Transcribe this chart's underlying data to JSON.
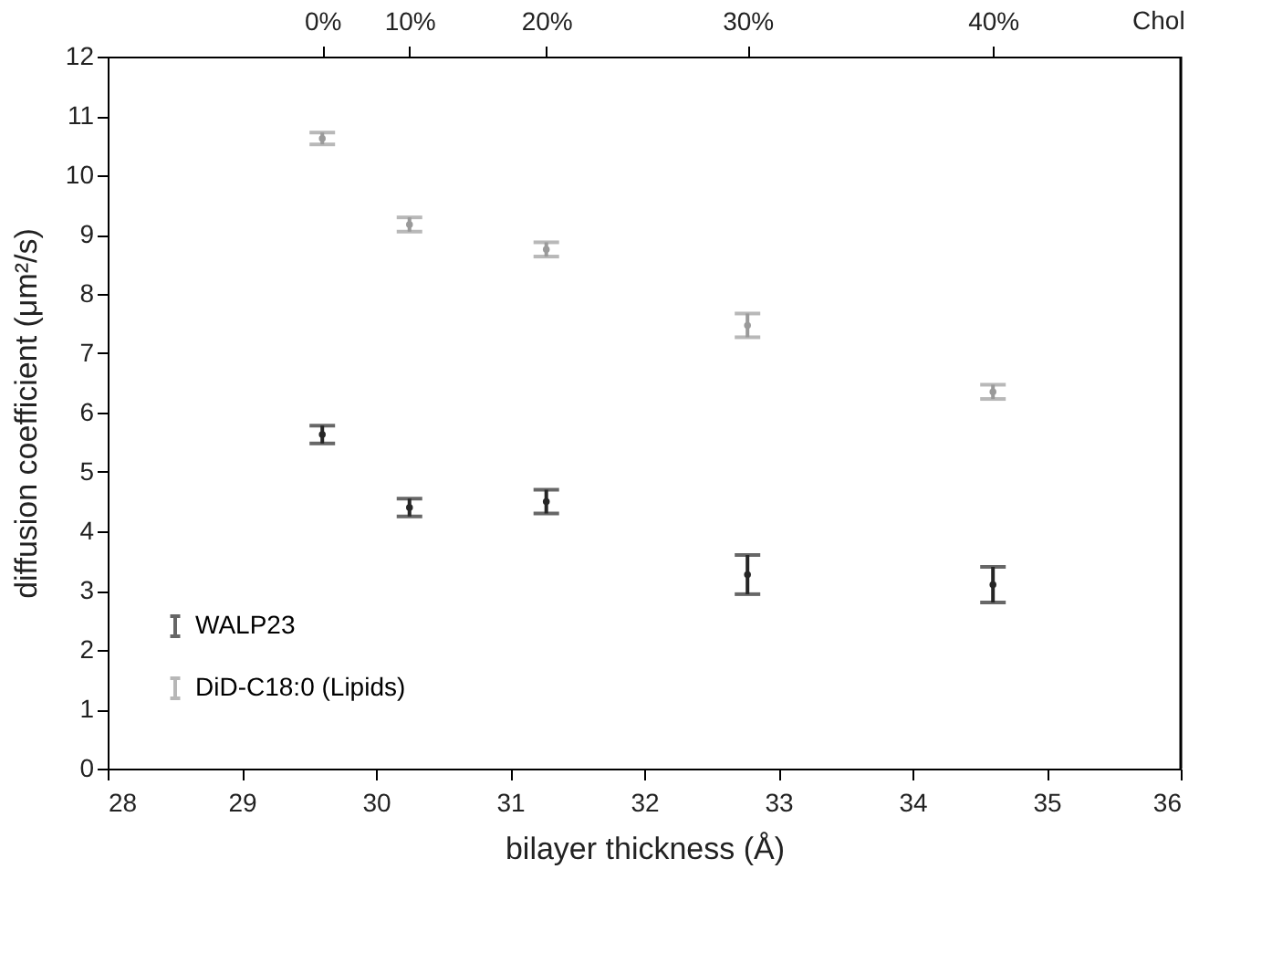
{
  "chart_data": {
    "type": "scatter",
    "xlabel": "bilayer thickness (Å)",
    "ylabel": "diffusion coefficient (μm²/s)",
    "x": [
      29.6,
      30.25,
      31.27,
      32.77,
      34.6
    ],
    "series": [
      {
        "name": "WALP23",
        "color": "#262626",
        "values": [
          5.63,
          4.4,
          4.5,
          3.27,
          3.1
        ],
        "errors": [
          0.15,
          0.15,
          0.2,
          0.33,
          0.3
        ]
      },
      {
        "name": "DiD-C18:0 (Lipids)",
        "color": "#9a9a9a",
        "values": [
          10.62,
          9.17,
          8.75,
          7.47,
          6.35
        ],
        "errors": [
          0.1,
          0.12,
          0.12,
          0.2,
          0.12
        ]
      }
    ],
    "xlim": [
      28,
      36
    ],
    "xticks": [
      28,
      29,
      30,
      31,
      32,
      33,
      34,
      35,
      36
    ],
    "ylim": [
      0,
      12
    ],
    "yticks": [
      0,
      1,
      2,
      3,
      4,
      5,
      6,
      7,
      8,
      9,
      10,
      11,
      12
    ],
    "annotations": [
      {
        "text": "0%",
        "x": 29.6
      },
      {
        "text": "10%",
        "x": 30.25
      },
      {
        "text": "20%",
        "x": 31.27
      },
      {
        "text": "30%",
        "x": 32.77
      },
      {
        "text": "40%",
        "x": 34.6
      },
      "Chol"
    ],
    "marker": "none",
    "grid": false,
    "legend": "bottom left"
  }
}
